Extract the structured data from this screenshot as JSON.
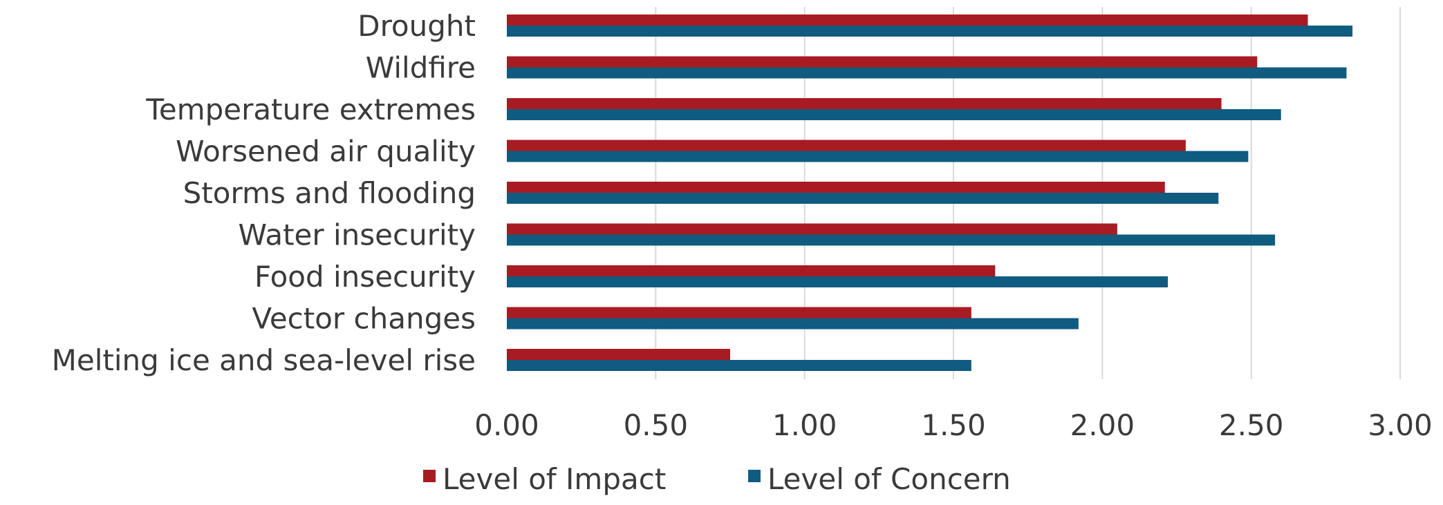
{
  "chart_data": {
    "type": "bar",
    "orientation": "horizontal",
    "categories": [
      "Drought",
      "Wildfire",
      "Temperature extremes",
      "Worsened air quality",
      "Storms and flooding",
      "Water insecurity",
      "Food insecurity",
      "Vector changes",
      "Melting ice and sea-level rise"
    ],
    "series": [
      {
        "name": "Level of Impact",
        "color": "#a91b22",
        "values": [
          2.69,
          2.52,
          2.4,
          2.28,
          2.21,
          2.05,
          1.64,
          1.56,
          0.75
        ]
      },
      {
        "name": "Level of Concern",
        "color": "#105b80",
        "values": [
          2.84,
          2.82,
          2.6,
          2.49,
          2.39,
          2.58,
          2.22,
          1.92,
          1.56
        ]
      }
    ],
    "x_ticks": [
      "0.00",
      "0.50",
      "1.00",
      "1.50",
      "2.00",
      "2.50",
      "3.00"
    ],
    "xlim": [
      0,
      3
    ],
    "title": "",
    "xlabel": "",
    "ylabel": "",
    "grid": "vertical",
    "legend_position": "bottom-center"
  }
}
